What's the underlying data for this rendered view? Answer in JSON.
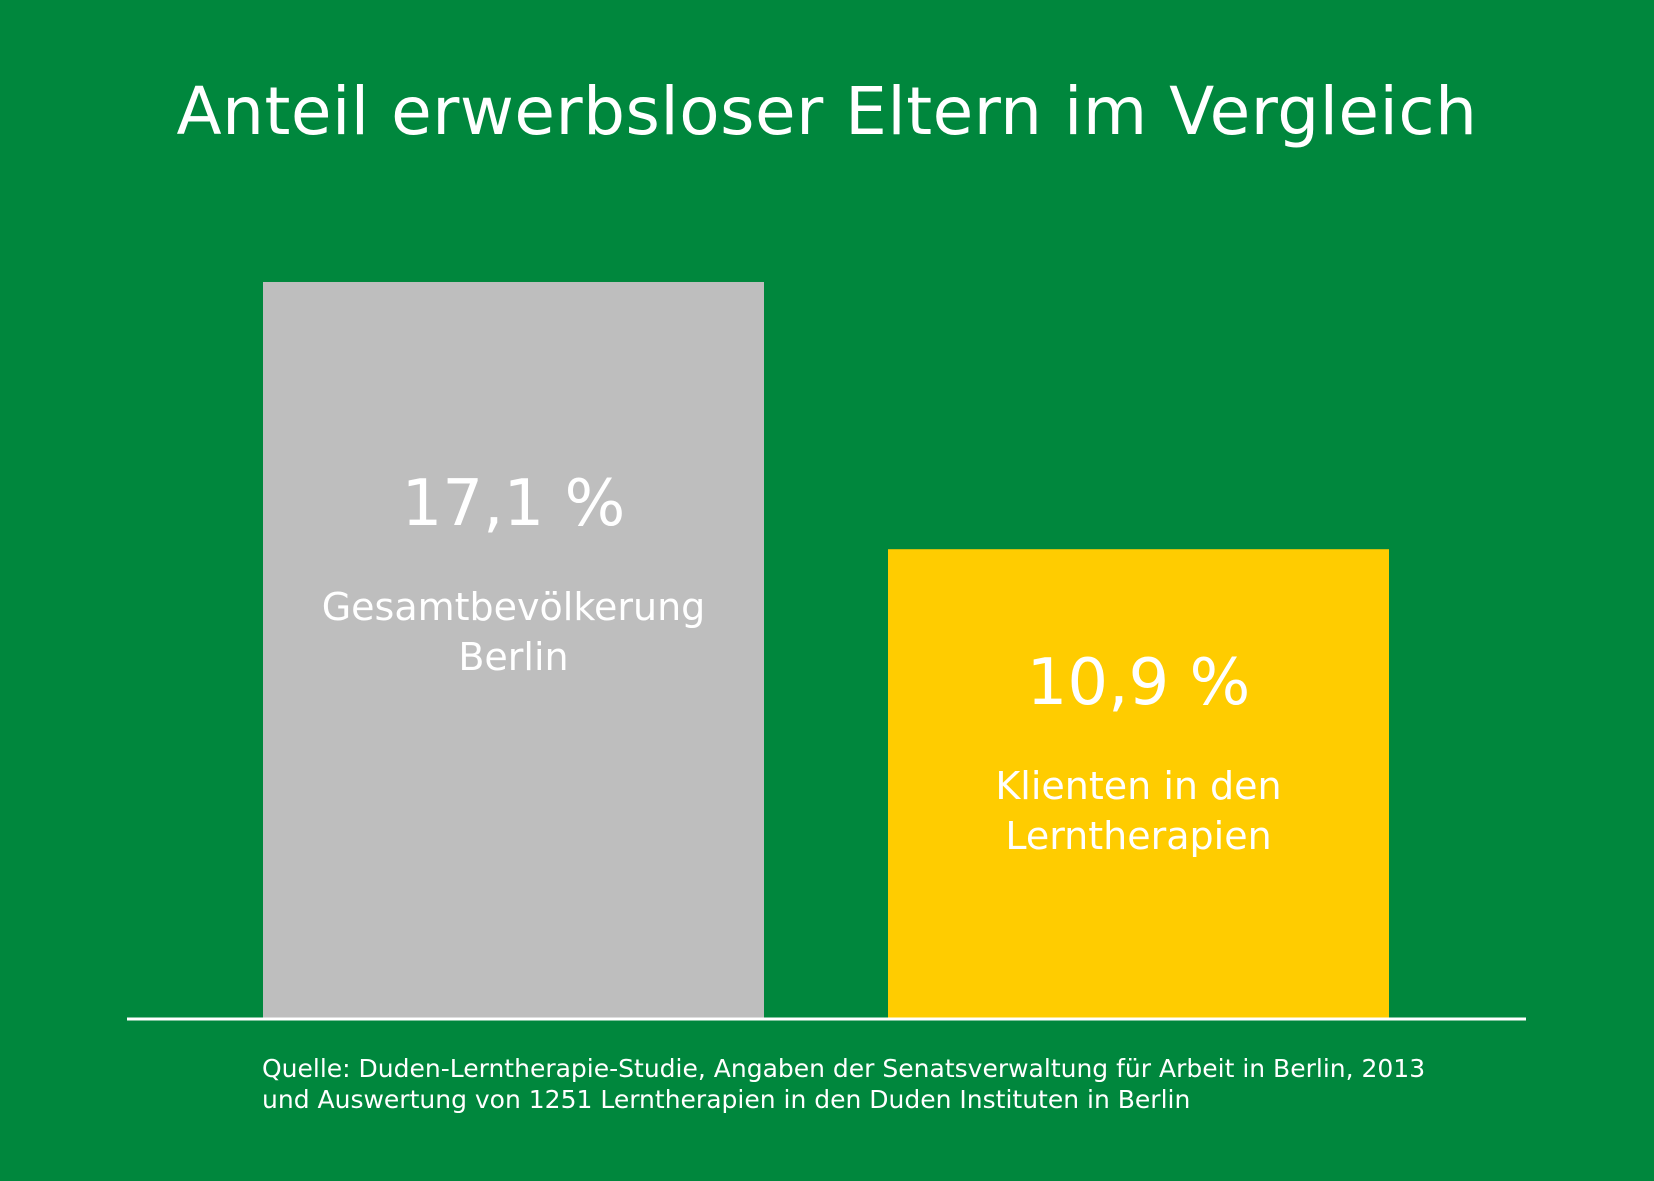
{
  "title": "Anteil erwerbsloser Eltern im Vergleich",
  "source": {
    "line1": "Quelle: Duden-Lerntherapie-Studie, Angaben der Senatsverwaltung für Arbeit in Berlin, 2013",
    "line2": "und Auswertung von 1251 Lerntherapien in den Duden Instituten in Berlin"
  },
  "colors": {
    "background": "#00873d",
    "bar_gray": "#bebebe",
    "bar_yellow": "#ffcc00",
    "text": "#ffffff",
    "baseline": "#ffffff"
  },
  "chart_data": {
    "type": "bar",
    "title": "Anteil erwerbsloser Eltern im Vergleich",
    "xlabel": "",
    "ylabel": "",
    "grid": false,
    "legend": "none",
    "bars": [
      {
        "value": 17.1,
        "value_label": "17,1 %",
        "category_lines": [
          "Gesamtbevölkerung",
          "Berlin"
        ],
        "color": "#bebebe"
      },
      {
        "value": 10.9,
        "value_label": "10,9 %",
        "category_lines": [
          "Klienten in den",
          "Lerntherapien"
        ],
        "color": "#ffcc00"
      }
    ]
  }
}
